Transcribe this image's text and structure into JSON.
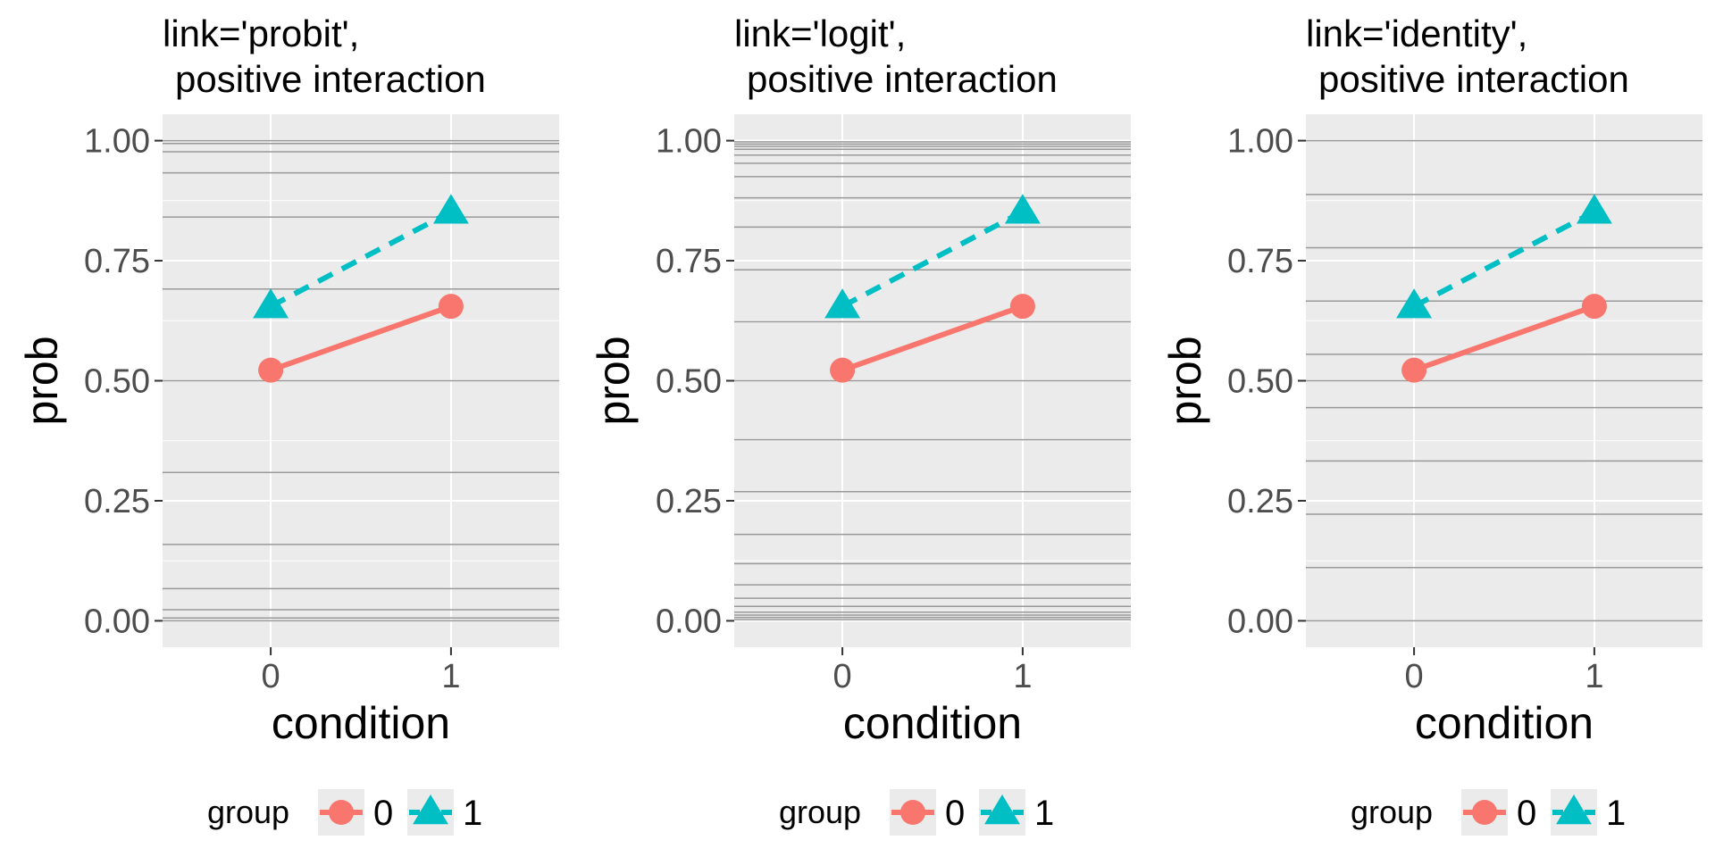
{
  "chart_data": [
    {
      "type": "line",
      "title_line1": "link='probit',",
      "title_line2": "positive interaction",
      "xlabel": "condition",
      "ylabel": "prob",
      "categories": [
        "0",
        "1"
      ],
      "x": [
        0,
        1
      ],
      "xlim": [
        -0.6,
        1.6
      ],
      "ylim": [
        -0.055,
        1.055
      ],
      "yticks": [
        0,
        0.25,
        0.5,
        0.75,
        1
      ],
      "ytick_labels": [
        "0.00",
        "0.25",
        "0.50",
        "0.75",
        "1.00"
      ],
      "series": [
        {
          "name": "0",
          "values": [
            0.522,
            0.655
          ],
          "color": "#F8766D",
          "marker": "circle",
          "linestyle": "solid"
        },
        {
          "name": "1",
          "values": [
            0.655,
            0.852
          ],
          "color": "#00BFC4",
          "marker": "triangle",
          "linestyle": "dashed"
        }
      ],
      "reference_lines": [
        0.0,
        0.006,
        0.023,
        0.067,
        0.159,
        0.309,
        0.5,
        0.691,
        0.841,
        0.933,
        0.977,
        0.994,
        1.0
      ],
      "legend": {
        "title": "group",
        "labels": [
          "0",
          "1"
        ],
        "position": "bottom"
      }
    },
    {
      "type": "line",
      "title_line1": "link='logit',",
      "title_line2": "positive interaction",
      "xlabel": "condition",
      "ylabel": "prob",
      "categories": [
        "0",
        "1"
      ],
      "x": [
        0,
        1
      ],
      "xlim": [
        -0.6,
        1.6
      ],
      "ylim": [
        -0.055,
        1.055
      ],
      "yticks": [
        0,
        0.25,
        0.5,
        0.75,
        1
      ],
      "ytick_labels": [
        "0.00",
        "0.25",
        "0.50",
        "0.75",
        "1.00"
      ],
      "series": [
        {
          "name": "0",
          "values": [
            0.522,
            0.655
          ],
          "color": "#F8766D",
          "marker": "circle",
          "linestyle": "solid"
        },
        {
          "name": "1",
          "values": [
            0.655,
            0.852
          ],
          "color": "#00BFC4",
          "marker": "triangle",
          "linestyle": "dashed"
        }
      ],
      "reference_lines": [
        0.007,
        0.018,
        0.047,
        0.119,
        0.269,
        0.5,
        0.731,
        0.881,
        0.953,
        0.982,
        0.993,
        0.0025,
        0.9975,
        0.012,
        0.988,
        0.03,
        0.97,
        0.075,
        0.925,
        0.18,
        0.82,
        0.377,
        0.623
      ],
      "legend": {
        "title": "group",
        "labels": [
          "0",
          "1"
        ],
        "position": "bottom"
      }
    },
    {
      "type": "line",
      "title_line1": "link='identity',",
      "title_line2": "positive interaction",
      "xlabel": "condition",
      "ylabel": "prob",
      "categories": [
        "0",
        "1"
      ],
      "x": [
        0,
        1
      ],
      "xlim": [
        -0.6,
        1.6
      ],
      "ylim": [
        -0.055,
        1.055
      ],
      "yticks": [
        0,
        0.25,
        0.5,
        0.75,
        1
      ],
      "ytick_labels": [
        "0.00",
        "0.25",
        "0.50",
        "0.75",
        "1.00"
      ],
      "series": [
        {
          "name": "0",
          "values": [
            0.522,
            0.655
          ],
          "color": "#F8766D",
          "marker": "circle",
          "linestyle": "solid"
        },
        {
          "name": "1",
          "values": [
            0.655,
            0.852
          ],
          "color": "#00BFC4",
          "marker": "triangle",
          "linestyle": "dashed"
        }
      ],
      "reference_lines": [
        0.0,
        0.111,
        0.222,
        0.333,
        0.444,
        0.5,
        0.555,
        0.666,
        0.777,
        0.888,
        1.0
      ],
      "legend": {
        "title": "group",
        "labels": [
          "0",
          "1"
        ],
        "position": "bottom"
      }
    }
  ]
}
